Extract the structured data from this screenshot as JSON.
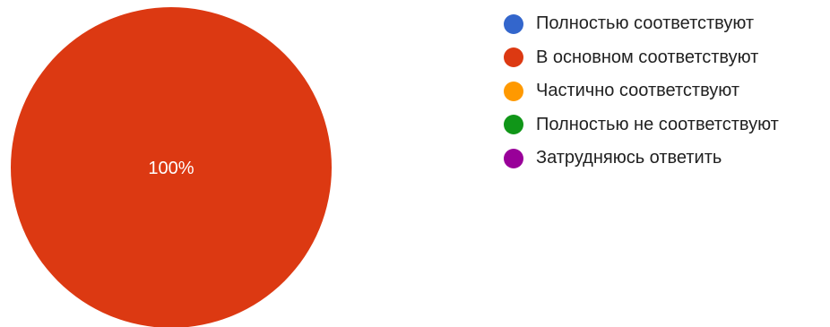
{
  "chart_data": {
    "type": "pie",
    "title": "",
    "slices": [
      {
        "label": "Полностью соответствуют",
        "value": 0,
        "color": "#3366cc"
      },
      {
        "label": "В основном соответствуют",
        "value": 100,
        "color": "#dc3912"
      },
      {
        "label": "Частично соответствуют",
        "value": 0,
        "color": "#ff9900"
      },
      {
        "label": "Полностью не соответствуют",
        "value": 0,
        "color": "#109618"
      },
      {
        "label": "Затрудняюсь ответить",
        "value": 0,
        "color": "#990099"
      }
    ],
    "data_labels": [
      "",
      "100%",
      "",
      "",
      ""
    ],
    "legend_position": "right"
  }
}
